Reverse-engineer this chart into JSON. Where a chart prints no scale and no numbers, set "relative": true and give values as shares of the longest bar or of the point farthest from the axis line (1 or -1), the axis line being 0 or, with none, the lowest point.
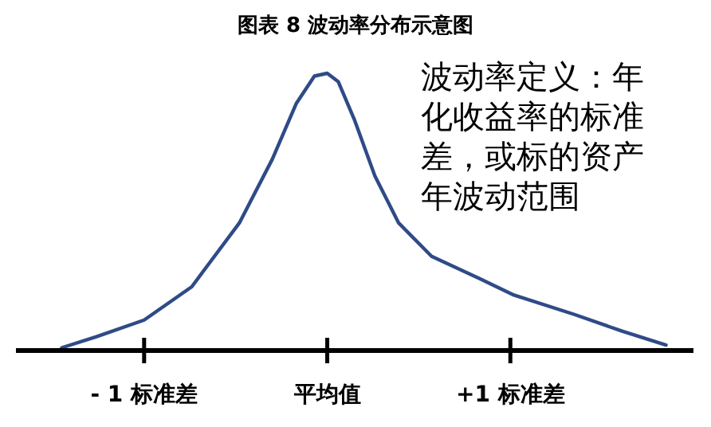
{
  "chart_data": {
    "type": "line",
    "title": "图表 8 波动率分布示意图",
    "relative": true,
    "xlim": [
      -1.7,
      2.0
    ],
    "xticks": [
      {
        "value": -1,
        "label": "- 1 标准差"
      },
      {
        "value": 0,
        "label": "平均值"
      },
      {
        "value": 1,
        "label": "+1 标准差"
      }
    ],
    "annotations": [
      "波动率定义：年化收益率的标准差，或标的资产年波动范围"
    ],
    "series": [
      {
        "color": "#2f4b87",
        "x": [
          -1.45,
          -1.26,
          -1,
          -0.74,
          -0.48,
          -0.3,
          -0.17,
          -0.07,
          0,
          0.06,
          0.15,
          0.26,
          0.39,
          0.57,
          0.83,
          1.02,
          1.35,
          1.61,
          1.85
        ],
        "values": [
          0.01,
          0.05,
          0.11,
          0.23,
          0.46,
          0.69,
          0.89,
          0.99,
          1,
          0.97,
          0.83,
          0.63,
          0.46,
          0.34,
          0.26,
          0.2,
          0.13,
          0.07,
          0.02
        ]
      }
    ]
  }
}
